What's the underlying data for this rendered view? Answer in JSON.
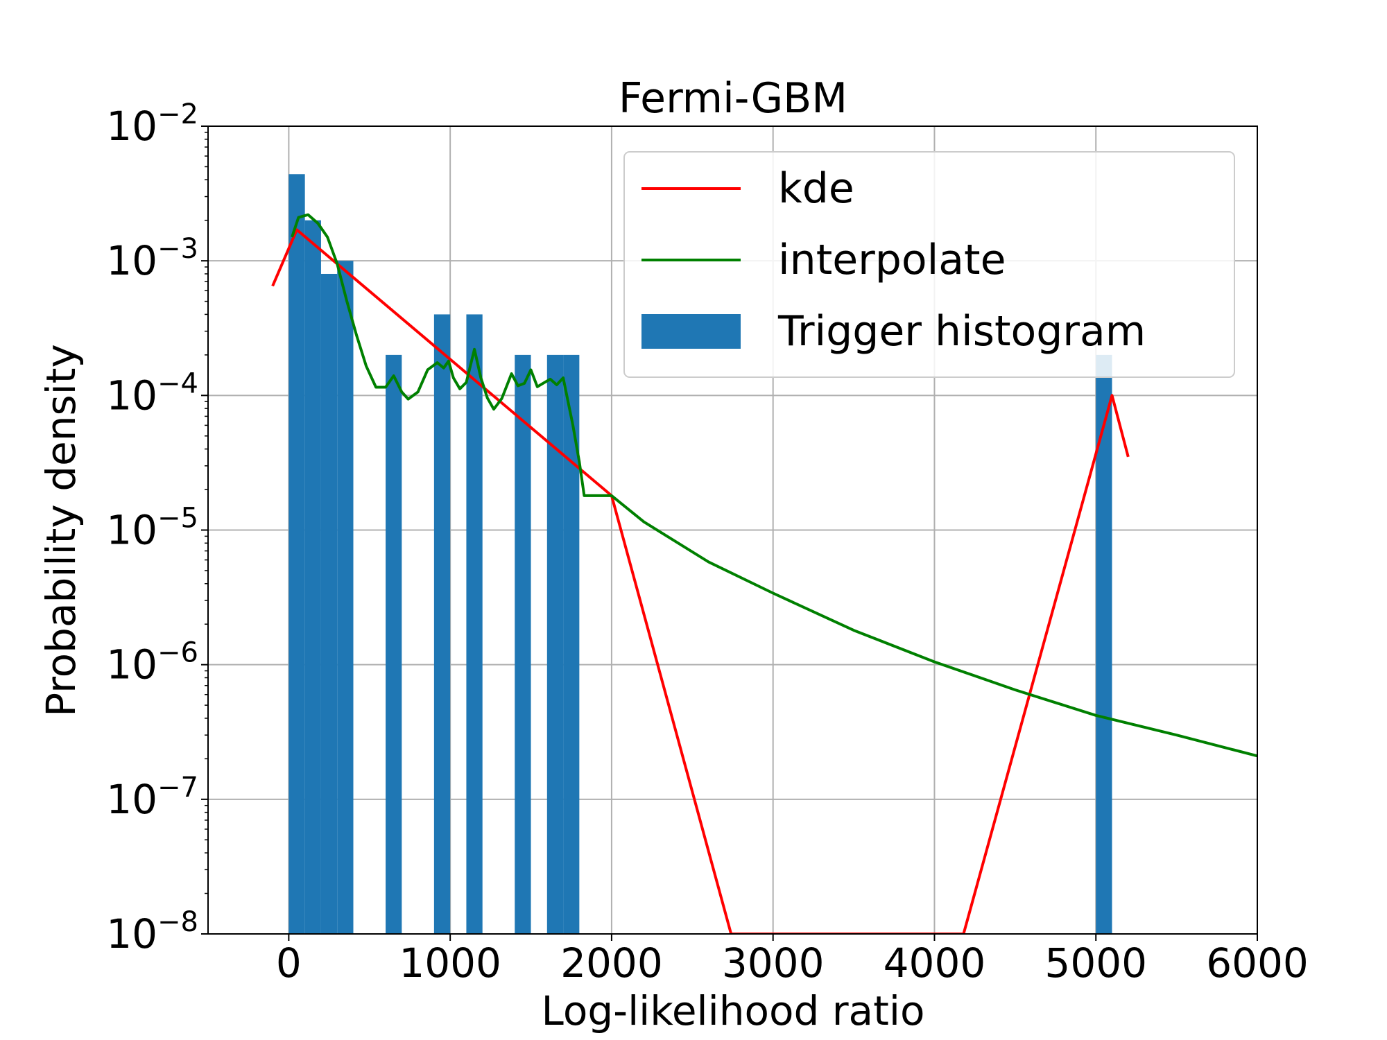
{
  "chart_data": {
    "type": "bar",
    "title": "Fermi-GBM",
    "xlabel": "Log-likelihood ratio",
    "ylabel": "Probability density",
    "xlim": [
      -500,
      6000
    ],
    "ylim": [
      1e-08,
      0.01
    ],
    "yscale": "log",
    "grid": true,
    "legend_position": "top-right",
    "x_ticks": [
      0,
      1000,
      2000,
      3000,
      4000,
      5000,
      6000
    ],
    "x_tick_labels": [
      "0",
      "1000",
      "2000",
      "3000",
      "4000",
      "5000",
      "6000"
    ],
    "y_ticks": [
      1e-08,
      1e-07,
      1e-06,
      1e-05,
      0.0001,
      0.001,
      0.01
    ],
    "y_tick_labels": [
      {
        "base": "10",
        "exp": "−8"
      },
      {
        "base": "10",
        "exp": "−7"
      },
      {
        "base": "10",
        "exp": "−6"
      },
      {
        "base": "10",
        "exp": "−5"
      },
      {
        "base": "10",
        "exp": "−4"
      },
      {
        "base": "10",
        "exp": "−3"
      },
      {
        "base": "10",
        "exp": "−2"
      }
    ],
    "series": [
      {
        "name": "Trigger histogram",
        "kind": "histogram",
        "color": "#1f77b4",
        "bins": [
          {
            "x0": 0,
            "x1": 100,
            "y": 0.0044
          },
          {
            "x0": 100,
            "x1": 200,
            "y": 0.002
          },
          {
            "x0": 200,
            "x1": 300,
            "y": 0.0008
          },
          {
            "x0": 300,
            "x1": 400,
            "y": 0.001
          },
          {
            "x0": 600,
            "x1": 700,
            "y": 0.0002
          },
          {
            "x0": 900,
            "x1": 1000,
            "y": 0.0004
          },
          {
            "x0": 1100,
            "x1": 1200,
            "y": 0.0004
          },
          {
            "x0": 1400,
            "x1": 1500,
            "y": 0.0002
          },
          {
            "x0": 1600,
            "x1": 1700,
            "y": 0.0002
          },
          {
            "x0": 1700,
            "x1": 1800,
            "y": 0.0002
          },
          {
            "x0": 5000,
            "x1": 5100,
            "y": 0.0002
          }
        ]
      },
      {
        "name": "kde",
        "kind": "line",
        "color": "#ff0000",
        "x": [
          -100,
          50,
          2000,
          2740,
          4180,
          5100,
          5200
        ],
        "y": [
          0.00065,
          0.0017,
          1.8e-05,
          1e-08,
          1e-08,
          0.0001,
          3.5e-05
        ]
      },
      {
        "name": "interpolate",
        "kind": "line",
        "color": "#008000",
        "x": [
          20,
          60,
          120,
          180,
          240,
          300,
          360,
          420,
          480,
          540,
          600,
          650,
          700,
          740,
          800,
          860,
          920,
          960,
          990,
          1020,
          1060,
          1100,
          1150,
          1190,
          1230,
          1270,
          1320,
          1380,
          1420,
          1460,
          1500,
          1540,
          1580,
          1620,
          1660,
          1700,
          1760,
          1800,
          1830,
          2000,
          2200,
          2600,
          3000,
          3500,
          4000,
          4500,
          5000,
          5500,
          6000
        ],
        "y": [
          0.0015,
          0.0021,
          0.0022,
          0.0019,
          0.0015,
          0.00095,
          0.0005,
          0.00028,
          0.000165,
          0.000115,
          0.000115,
          0.00014,
          0.000106,
          9.4e-05,
          0.000106,
          0.000155,
          0.000175,
          0.00016,
          0.00018,
          0.000135,
          0.000112,
          0.000125,
          0.00022,
          0.000135,
          9.6e-05,
          7.9e-05,
          9.5e-05,
          0.000145,
          0.000118,
          0.000123,
          0.000155,
          0.000116,
          0.000124,
          0.000132,
          0.00012,
          0.000135,
          6e-05,
          3.2e-05,
          1.8e-05,
          1.8e-05,
          1.15e-05,
          5.8e-06,
          3.4e-06,
          1.8e-06,
          1.05e-06,
          6.5e-07,
          4.2e-07,
          3e-07,
          2.1e-07
        ]
      }
    ],
    "legend": [
      {
        "label": "kde",
        "color": "#ff0000",
        "marker": "line"
      },
      {
        "label": "interpolate",
        "color": "#008000",
        "marker": "line"
      },
      {
        "label": "Trigger histogram",
        "color": "#1f77b4",
        "marker": "patch"
      }
    ]
  }
}
